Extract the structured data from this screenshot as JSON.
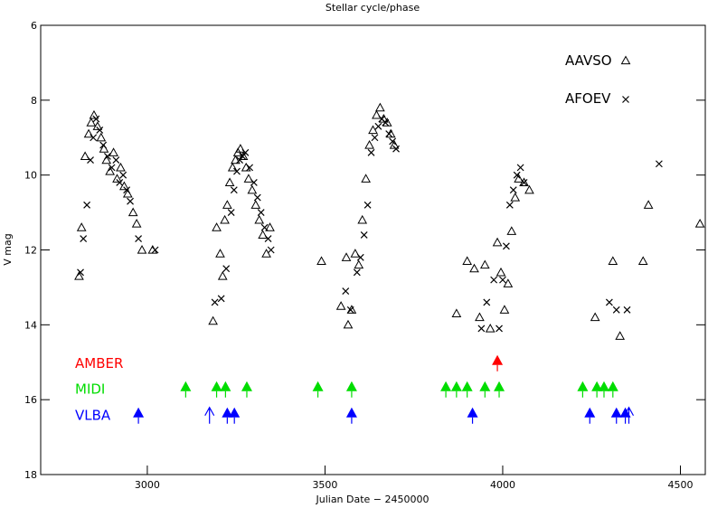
{
  "chart_data": {
    "type": "scatter",
    "title": "",
    "xlabel": "Julian Date − 2450000",
    "ylabel": "V mag",
    "x2label": "Stellar cycle/phase",
    "xlim": [
      2700,
      4570
    ],
    "ylim": [
      18,
      6
    ],
    "xticks": [
      3000,
      3500,
      4000,
      4500
    ],
    "yticks": [
      6,
      8,
      10,
      12,
      14,
      16,
      18
    ],
    "x2ticks": [
      0,
      1,
      2,
      3,
      4
    ],
    "phase_zero_jd": 2880,
    "period_days": 390,
    "legend": [
      {
        "name": "AAVSO",
        "marker": "triangle"
      },
      {
        "name": "AFOEV",
        "marker": "cross"
      }
    ],
    "series": [
      {
        "name": "AAVSO",
        "marker": "triangle",
        "color": "#000000",
        "x": [
          2808,
          2815,
          2825,
          2835,
          2842,
          2850,
          2860,
          2870,
          2878,
          2885,
          2895,
          2905,
          2915,
          2925,
          2935,
          2945,
          2960,
          2970,
          2985,
          3015,
          3185,
          3195,
          3205,
          3212,
          3218,
          3225,
          3232,
          3240,
          3248,
          3255,
          3262,
          3270,
          3278,
          3285,
          3295,
          3305,
          3315,
          3325,
          3335,
          3345,
          3490,
          3545,
          3560,
          3565,
          3575,
          3585,
          3595,
          3605,
          3615,
          3625,
          3635,
          3645,
          3655,
          3665,
          3675,
          3685,
          3695,
          3870,
          3900,
          3920,
          3935,
          3950,
          3965,
          3985,
          3995,
          4005,
          4015,
          4025,
          4035,
          4045,
          4060,
          4075,
          4260,
          4310,
          4330,
          4395,
          4410,
          4555
        ],
        "y": [
          12.7,
          11.4,
          9.5,
          8.9,
          8.6,
          8.4,
          8.7,
          9.0,
          9.3,
          9.6,
          9.9,
          9.4,
          10.1,
          9.8,
          10.3,
          10.5,
          11.0,
          11.3,
          12.0,
          12.0,
          13.9,
          11.4,
          12.1,
          12.7,
          11.2,
          10.8,
          10.2,
          9.8,
          9.6,
          9.4,
          9.3,
          9.5,
          9.8,
          10.1,
          10.4,
          10.8,
          11.2,
          11.6,
          12.1,
          11.4,
          12.3,
          13.5,
          12.2,
          14.0,
          13.6,
          12.1,
          12.4,
          11.2,
          10.1,
          9.2,
          8.8,
          8.4,
          8.2,
          8.5,
          8.6,
          8.9,
          9.2,
          13.7,
          12.3,
          12.5,
          13.8,
          12.4,
          14.1,
          11.8,
          12.6,
          13.6,
          12.9,
          11.5,
          10.6,
          10.1,
          10.2,
          10.4,
          13.8,
          12.3,
          14.3,
          12.3,
          10.8,
          11.3
        ]
      },
      {
        "name": "AFOEV",
        "marker": "cross",
        "color": "#000000",
        "x": [
          2812,
          2820,
          2830,
          2840,
          2848,
          2856,
          2866,
          2876,
          2888,
          2900,
          2912,
          2922,
          2932,
          2942,
          2952,
          2975,
          3022,
          3190,
          3208,
          3222,
          3236,
          3244,
          3252,
          3260,
          3268,
          3276,
          3288,
          3300,
          3310,
          3320,
          3330,
          3340,
          3348,
          3558,
          3572,
          3590,
          3600,
          3610,
          3620,
          3630,
          3640,
          3650,
          3660,
          3670,
          3680,
          3690,
          3700,
          3940,
          3955,
          3975,
          3990,
          4000,
          4010,
          4020,
          4030,
          4040,
          4050,
          4060,
          4300,
          4320,
          4350,
          4440
        ],
        "y": [
          12.6,
          11.7,
          10.8,
          9.6,
          9.0,
          8.5,
          8.8,
          9.2,
          9.5,
          9.8,
          9.6,
          10.2,
          10.0,
          10.4,
          10.7,
          11.7,
          12.0,
          13.4,
          13.3,
          12.5,
          11.0,
          10.4,
          9.9,
          9.6,
          9.5,
          9.4,
          9.8,
          10.2,
          10.6,
          11.0,
          11.4,
          11.7,
          12.0,
          13.1,
          13.6,
          12.6,
          12.2,
          11.6,
          10.8,
          9.4,
          9.0,
          8.7,
          8.5,
          8.6,
          8.9,
          9.1,
          9.3,
          14.1,
          13.4,
          12.8,
          14.1,
          12.8,
          11.9,
          10.8,
          10.4,
          10.0,
          9.8,
          10.2,
          13.4,
          13.6,
          13.6,
          9.7
        ]
      }
    ],
    "instruments": [
      {
        "name": "AMBER",
        "color": "#ff0000",
        "row_mag": 15.0,
        "epochs": [
          3985
        ],
        "open_epochs": []
      },
      {
        "name": "MIDI",
        "color": "#00dd00",
        "row_mag": 15.7,
        "epochs": [
          3108,
          3195,
          3220,
          3280,
          3480,
          3575,
          3840,
          3870,
          3900,
          3950,
          3990,
          4225,
          4265,
          4285,
          4310
        ],
        "open_epochs": []
      },
      {
        "name": "VLBA",
        "color": "#0000ff",
        "row_mag": 16.4,
        "epochs": [
          2975,
          3225,
          3245,
          3575,
          3915,
          4245,
          4320,
          4345
        ],
        "open_epochs": [
          3175,
          4355
        ]
      }
    ]
  }
}
